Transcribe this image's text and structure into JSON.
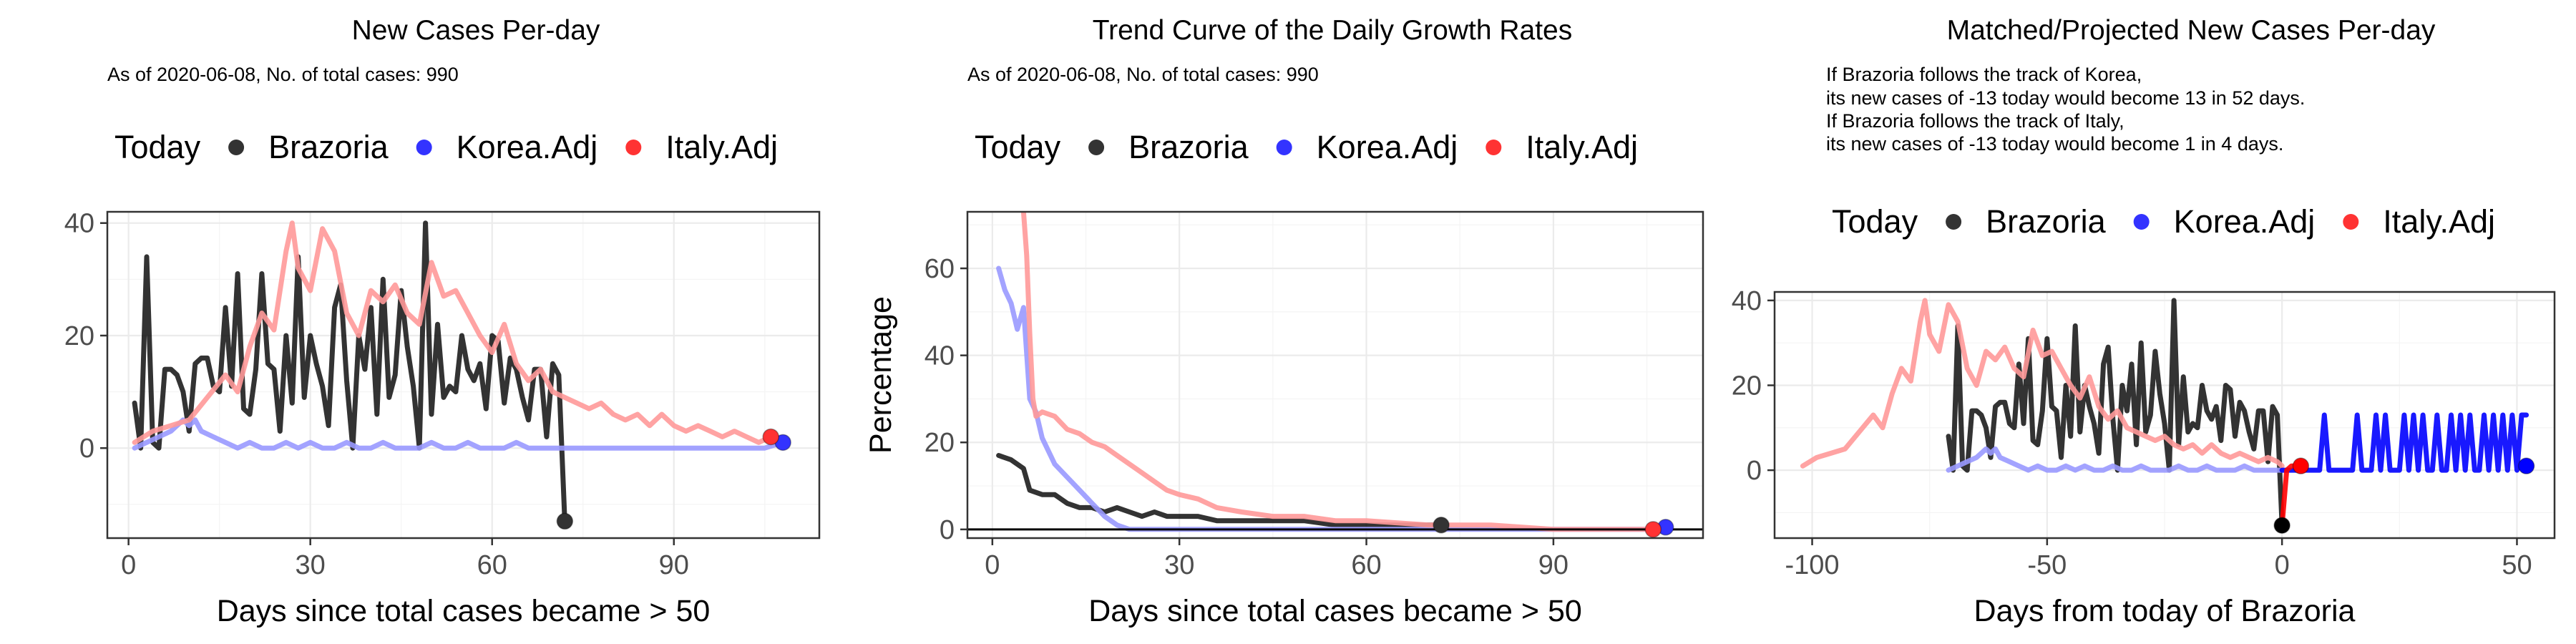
{
  "legend_title": "Today",
  "legend_items": [
    {
      "label": "Brazoria",
      "color": "#000000"
    },
    {
      "label": "Korea.Adj",
      "color": "#0000ff"
    },
    {
      "label": "Italy.Adj",
      "color": "#ff0000"
    }
  ],
  "chart_data": [
    {
      "type": "line",
      "title": "New Cases Per-day",
      "subtitle": "As of 2020-06-08, No. of total cases: 990",
      "xlabel": "Days since total cases became > 50",
      "ylabel": "",
      "xlim": [
        -3.5,
        114
      ],
      "ylim": [
        -16,
        42
      ],
      "xticks": [
        0,
        30,
        60,
        90
      ],
      "yticks": [
        0,
        20,
        40
      ],
      "grid": true,
      "legend_position": "top",
      "series": [
        {
          "name": "Brazoria",
          "color": "#000000",
          "x": [
            1,
            2,
            3,
            4,
            5,
            6,
            7,
            8,
            9,
            10,
            11,
            12,
            13,
            14,
            15,
            16,
            17,
            18,
            19,
            20,
            21,
            22,
            23,
            24,
            25,
            26,
            27,
            28,
            29,
            30,
            31,
            32,
            33,
            34,
            35,
            36,
            37,
            38,
            39,
            40,
            41,
            42,
            43,
            44,
            45,
            46,
            47,
            48,
            49,
            50,
            51,
            52,
            53,
            54,
            55,
            56,
            57,
            58,
            59,
            60,
            61,
            62,
            63,
            64,
            65,
            66,
            67,
            68,
            69,
            70,
            71,
            72
          ],
          "y": [
            8,
            0,
            34,
            1,
            0,
            14,
            14,
            13,
            10,
            3,
            15,
            16,
            16,
            11,
            10,
            25,
            11,
            31,
            7,
            6,
            14,
            31,
            15,
            14,
            3,
            20,
            8,
            34,
            9,
            20,
            15,
            11,
            4,
            25,
            29,
            12,
            0,
            20,
            14,
            25,
            6,
            30,
            9,
            13,
            28,
            18,
            11,
            0,
            40,
            6,
            22,
            9,
            11,
            10,
            20,
            14,
            12,
            15,
            7,
            20,
            19,
            8,
            16,
            14,
            9,
            5,
            14,
            14,
            2,
            15,
            13,
            -13
          ]
        },
        {
          "name": "Korea.Adj",
          "color": "#9999ff",
          "x": [
            1,
            3,
            5,
            7,
            9,
            10,
            11,
            12,
            14,
            16,
            18,
            20,
            22,
            24,
            26,
            28,
            30,
            32,
            34,
            36,
            38,
            40,
            42,
            44,
            46,
            48,
            50,
            52,
            54,
            56,
            58,
            60,
            62,
            64,
            66,
            68,
            70,
            72,
            75,
            78,
            81,
            84,
            87,
            90,
            93,
            96,
            99,
            102,
            105,
            108
          ],
          "y": [
            0,
            1,
            2,
            3,
            5,
            4,
            5,
            3,
            2,
            1,
            0,
            1,
            0,
            0,
            1,
            0,
            1,
            0,
            0,
            1,
            0,
            0,
            1,
            0,
            0,
            0,
            1,
            0,
            0,
            1,
            0,
            0,
            0,
            1,
            0,
            0,
            0,
            0,
            0,
            0,
            0,
            0,
            0,
            0,
            0,
            0,
            0,
            0,
            0,
            1
          ]
        },
        {
          "name": "Italy.Adj",
          "color": "#ff9999",
          "x": [
            1,
            4,
            7,
            10,
            13,
            16,
            18,
            20,
            22,
            24,
            26,
            27,
            28,
            30,
            32,
            34,
            36,
            38,
            40,
            42,
            44,
            46,
            48,
            50,
            52,
            54,
            56,
            58,
            60,
            62,
            64,
            66,
            68,
            70,
            72,
            74,
            76,
            78,
            80,
            82,
            84,
            86,
            88,
            90,
            92,
            94,
            96,
            98,
            100,
            102,
            104,
            106
          ],
          "y": [
            1,
            3,
            4,
            5,
            9,
            13,
            10,
            18,
            24,
            21,
            35,
            40,
            32,
            28,
            39,
            35,
            24,
            20,
            28,
            26,
            29,
            24,
            22,
            33,
            27,
            28,
            24,
            20,
            17,
            22,
            15,
            12,
            14,
            10,
            9,
            8,
            7,
            8,
            6,
            5,
            6,
            4,
            6,
            4,
            3,
            4,
            3,
            2,
            3,
            2,
            1,
            2
          ]
        }
      ],
      "points": [
        {
          "series": "Brazoria",
          "x": 72,
          "y": -13,
          "color": "#333333"
        },
        {
          "series": "Korea.Adj",
          "x": 108,
          "y": 1,
          "color": "#3333ff"
        },
        {
          "series": "Italy.Adj",
          "x": 106,
          "y": 2,
          "color": "#ff3333"
        }
      ]
    },
    {
      "type": "line",
      "title": "Trend Curve of the Daily Growth Rates",
      "subtitle": "As of 2020-06-08, No. of total cases: 990",
      "xlabel": "Days since total cases became > 50",
      "ylabel": "Percentage",
      "xlim": [
        -4,
        114
      ],
      "ylim": [
        -2,
        73
      ],
      "xticks": [
        0,
        30,
        60,
        90
      ],
      "yticks": [
        0,
        20,
        40,
        60
      ],
      "hline": 0,
      "grid": true,
      "legend_position": "top",
      "series": [
        {
          "name": "Brazoria",
          "color": "#000000",
          "x": [
            1,
            3,
            5,
            6,
            8,
            10,
            12,
            14,
            16,
            18,
            20,
            22,
            24,
            26,
            28,
            30,
            33,
            36,
            40,
            45,
            50,
            55,
            60,
            65,
            72
          ],
          "y": [
            17,
            16,
            14,
            9,
            8,
            8,
            6,
            5,
            5,
            4,
            5,
            4,
            3,
            4,
            3,
            3,
            3,
            2,
            2,
            2,
            2,
            1,
            1,
            1,
            1
          ]
        },
        {
          "name": "Korea.Adj",
          "color": "#9999ff",
          "x": [
            1,
            2,
            3,
            4,
            5,
            6,
            7,
            8,
            10,
            12,
            14,
            16,
            18,
            20,
            22,
            25,
            30,
            40,
            50,
            60,
            70,
            80,
            90,
            100,
            108
          ],
          "y": [
            60,
            55,
            52,
            46,
            51,
            30,
            27,
            21,
            15,
            12,
            9,
            6,
            3,
            1,
            0,
            0,
            0,
            0,
            0,
            0,
            0,
            0,
            0,
            0,
            0
          ]
        },
        {
          "name": "Italy.Adj",
          "color": "#ff9999",
          "x": [
            5,
            5.5,
            6,
            6.5,
            7,
            8,
            10,
            12,
            14,
            16,
            18,
            20,
            22,
            24,
            26,
            28,
            30,
            33,
            36,
            40,
            45,
            50,
            55,
            60,
            70,
            80,
            90,
            100,
            106
          ],
          "y": [
            73,
            63,
            45,
            30,
            26,
            27,
            26,
            23,
            22,
            20,
            19,
            17,
            15,
            13,
            11,
            9,
            8,
            7,
            5,
            4,
            3,
            3,
            2,
            2,
            1,
            1,
            0,
            0,
            0
          ]
        }
      ],
      "points": [
        {
          "series": "Brazoria",
          "x": 72,
          "y": 1,
          "color": "#333333"
        },
        {
          "series": "Korea.Adj",
          "x": 108,
          "y": 0.5,
          "color": "#3333ff"
        },
        {
          "series": "Italy.Adj",
          "x": 106,
          "y": 0,
          "color": "#ff3333"
        }
      ]
    },
    {
      "type": "line",
      "title": "Matched/Projected New Cases Per-day",
      "subtitle_lines": [
        "If Brazoria follows the track of Korea,",
        "its new cases of -13 today would become 13 in 52 days.",
        "If Brazoria follows the track of Italy,",
        "its new cases of -13 today would become 1 in 4 days."
      ],
      "xlabel": "Days from today of Brazoria",
      "ylabel": "",
      "xlim": [
        -108,
        58
      ],
      "ylim": [
        -16,
        42
      ],
      "xticks": [
        -100,
        -50,
        0,
        50
      ],
      "yticks": [
        0,
        20,
        40
      ],
      "grid": true,
      "legend_position": "top",
      "series": [
        {
          "name": "Brazoria",
          "color": "#000000",
          "x": [
            -71,
            -70,
            -69,
            -68,
            -67,
            -66,
            -65,
            -64,
            -63,
            -62,
            -61,
            -60,
            -59,
            -58,
            -57,
            -56,
            -55,
            -54,
            -53,
            -52,
            -51,
            -50,
            -49,
            -48,
            -47,
            -46,
            -45,
            -44,
            -43,
            -42,
            -41,
            -40,
            -39,
            -38,
            -37,
            -36,
            -35,
            -34,
            -33,
            -32,
            -31,
            -30,
            -29,
            -28,
            -27,
            -26,
            -25,
            -24,
            -23,
            -22,
            -21,
            -20,
            -19,
            -18,
            -17,
            -16,
            -15,
            -14,
            -13,
            -12,
            -11,
            -10,
            -9,
            -8,
            -7,
            -6,
            -5,
            -4,
            -3,
            -2,
            -1,
            0
          ],
          "y": [
            8,
            0,
            34,
            1,
            0,
            14,
            14,
            13,
            10,
            3,
            15,
            16,
            16,
            11,
            10,
            25,
            11,
            31,
            7,
            6,
            14,
            31,
            15,
            14,
            3,
            20,
            8,
            34,
            9,
            20,
            15,
            11,
            4,
            25,
            29,
            12,
            0,
            20,
            14,
            25,
            6,
            30,
            9,
            13,
            28,
            18,
            11,
            0,
            40,
            6,
            22,
            9,
            11,
            10,
            20,
            14,
            12,
            15,
            7,
            20,
            19,
            8,
            16,
            14,
            9,
            5,
            14,
            14,
            2,
            15,
            13,
            -13
          ]
        },
        {
          "name": "Korea.Adj",
          "color": "#9999ff",
          "x": [
            -71,
            -69,
            -67,
            -65,
            -63,
            -62,
            -61,
            -60,
            -58,
            -56,
            -54,
            -52,
            -50,
            -48,
            -46,
            -44,
            -42,
            -40,
            -38,
            -36,
            -34,
            -32,
            -30,
            -28,
            -26,
            -24,
            -22,
            -20,
            -18,
            -16,
            -14,
            -12,
            -10,
            -8,
            -6,
            -4,
            -2,
            0
          ],
          "y": [
            0,
            1,
            2,
            3,
            5,
            4,
            5,
            3,
            2,
            1,
            0,
            1,
            0,
            0,
            1,
            0,
            1,
            0,
            0,
            1,
            0,
            0,
            1,
            0,
            0,
            0,
            1,
            0,
            0,
            1,
            0,
            0,
            0,
            1,
            0,
            0,
            0,
            0
          ]
        },
        {
          "name": "Italy.Adj",
          "color": "#ff9999",
          "x": [
            -102,
            -99,
            -96,
            -93,
            -90,
            -87,
            -85,
            -83,
            -81,
            -79,
            -77,
            -76,
            -75,
            -73,
            -71,
            -69,
            -67,
            -65,
            -63,
            -61,
            -59,
            -57,
            -55,
            -53,
            -51,
            -49,
            -47,
            -45,
            -43,
            -41,
            -39,
            -37,
            -35,
            -33,
            -31,
            -29,
            -27,
            -25,
            -23,
            -21,
            -19,
            -17,
            -15,
            -13,
            -11,
            -9,
            -7,
            -5,
            -3,
            -1,
            0
          ],
          "y": [
            1,
            3,
            4,
            5,
            9,
            13,
            10,
            18,
            24,
            21,
            35,
            40,
            32,
            28,
            39,
            35,
            24,
            20,
            28,
            26,
            29,
            24,
            22,
            33,
            27,
            28,
            24,
            20,
            17,
            22,
            15,
            12,
            14,
            10,
            9,
            8,
            7,
            8,
            6,
            5,
            6,
            4,
            6,
            4,
            3,
            4,
            3,
            2,
            3,
            2,
            1
          ]
        },
        {
          "name": "Korea.Adj projection",
          "color": "#0000ff",
          "x": [
            0,
            1,
            2,
            3,
            4,
            5,
            6,
            7,
            8,
            9,
            10,
            11,
            12,
            13,
            14,
            15,
            16,
            17,
            18,
            19,
            20,
            21,
            22,
            23,
            24,
            25,
            26,
            27,
            28,
            29,
            30,
            31,
            32,
            33,
            34,
            35,
            36,
            37,
            38,
            39,
            40,
            41,
            42,
            43,
            44,
            45,
            46,
            47,
            48,
            49,
            50,
            51,
            52
          ],
          "y": [
            0,
            0,
            0,
            0,
            0,
            0,
            0,
            0,
            0,
            13,
            0,
            0,
            0,
            0,
            0,
            0,
            13,
            0,
            0,
            0,
            13,
            0,
            13,
            0,
            0,
            0,
            13,
            0,
            13,
            0,
            13,
            0,
            0,
            13,
            0,
            0,
            13,
            0,
            13,
            0,
            13,
            0,
            0,
            13,
            0,
            13,
            0,
            13,
            0,
            13,
            0,
            13,
            13
          ]
        },
        {
          "name": "Italy.Adj projection",
          "color": "#ff0000",
          "x": [
            0,
            1,
            2,
            3,
            4
          ],
          "y": [
            -13,
            0,
            1,
            1,
            1
          ]
        }
      ],
      "points": [
        {
          "series": "Brazoria",
          "x": 0,
          "y": -13,
          "color": "#000000"
        },
        {
          "series": "Korea.Adj",
          "x": 52,
          "y": 1,
          "color": "#0000ff"
        },
        {
          "series": "Italy.Adj",
          "x": 4,
          "y": 1,
          "color": "#ff0000"
        }
      ]
    }
  ]
}
